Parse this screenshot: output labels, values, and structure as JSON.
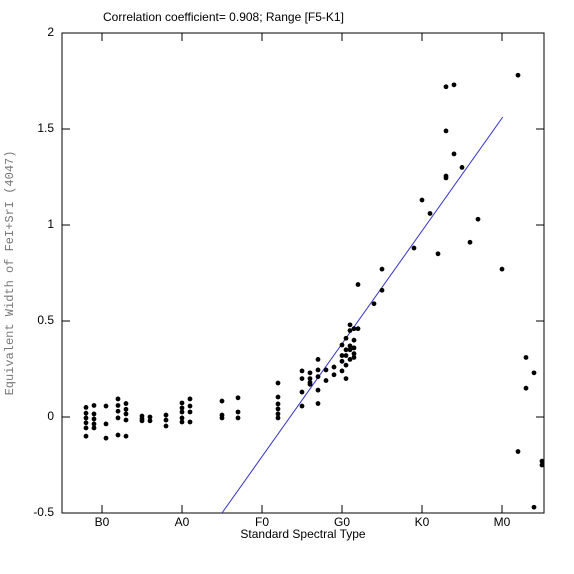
{
  "chart_data": {
    "type": "scatter",
    "title": "Correlation coefficient= 0.908; Range [F5-K1]",
    "x_label": "Standard Spectral Type",
    "y_label": "Equivalent Width of FeI+SrI (4047)",
    "xlim": [
      -5,
      55.25
    ],
    "ylim": [
      -0.5,
      2
    ],
    "xticks": [
      {
        "value": 0,
        "label": "B0"
      },
      {
        "value": 10,
        "label": "A0"
      },
      {
        "value": 20,
        "label": "F0"
      },
      {
        "value": 30,
        "label": "G0"
      },
      {
        "value": 40,
        "label": "K0"
      },
      {
        "value": 50,
        "label": "M0"
      }
    ],
    "yticks": [
      -0.5,
      0,
      0.5,
      1,
      1.5,
      2
    ],
    "series": [
      {
        "color": "#000000",
        "x": [
          -2,
          -2,
          -2,
          -2,
          -2,
          -2,
          -1,
          -1,
          -1,
          -1,
          -1,
          0.5,
          0.5,
          0.5,
          2,
          2,
          2,
          2,
          2,
          3,
          3,
          3,
          3,
          3,
          5,
          5,
          5,
          6,
          6,
          8,
          8,
          8,
          10,
          10,
          10,
          10,
          10,
          11,
          11,
          11,
          11,
          15,
          15,
          15,
          17,
          17,
          17,
          22,
          22,
          22,
          22,
          22,
          22,
          25,
          25,
          25,
          25,
          26,
          26,
          26,
          26,
          27,
          27,
          27,
          27,
          27,
          28,
          28,
          29,
          29,
          30,
          30,
          30,
          30,
          30.5,
          30.5,
          30.5,
          30.5,
          30.5,
          31,
          31,
          31,
          31,
          31,
          31.5,
          31.5,
          31.5,
          31.5,
          31.5,
          32,
          32,
          34,
          35,
          35,
          39,
          40,
          41,
          42,
          43,
          43,
          43,
          43,
          44,
          44,
          45,
          46,
          47,
          50,
          52,
          52,
          53,
          53,
          54,
          54,
          55,
          55
        ],
        "values": [
          0.05,
          0.02,
          -0.005,
          -0.03,
          -0.057,
          -0.1,
          0.06,
          0.016,
          -0.01,
          -0.036,
          -0.057,
          0.057,
          -0.036,
          -0.11,
          0.094,
          0.06,
          0.03,
          -0.005,
          -0.094,
          0.07,
          0.04,
          0.016,
          -0.016,
          -0.1,
          0.005,
          -0.01,
          -0.02,
          0,
          -0.02,
          0.01,
          -0.016,
          -0.047,
          0.073,
          0.047,
          0.026,
          -0.005,
          -0.026,
          0.094,
          0.057,
          0.026,
          -0.026,
          0.083,
          0.01,
          -0.005,
          0.1,
          0.026,
          -0.005,
          0.177,
          0.104,
          0.068,
          0.042,
          0.016,
          -0.005,
          0.24,
          0.2,
          0.13,
          0.057,
          0.23,
          0.2,
          0.18,
          0.17,
          0.3,
          0.245,
          0.21,
          0.14,
          0.07,
          0.245,
          0.19,
          0.22,
          0.26,
          0.375,
          0.32,
          0.29,
          0.24,
          0.41,
          0.35,
          0.32,
          0.27,
          0.2,
          0.48,
          0.45,
          0.37,
          0.35,
          0.3,
          0.46,
          0.4,
          0.36,
          0.33,
          0.31,
          0.69,
          0.46,
          0.59,
          0.77,
          0.66,
          0.88,
          1.13,
          1.06,
          0.85,
          1.72,
          1.49,
          1.255,
          1.245,
          1.73,
          1.37,
          1.3,
          0.91,
          1.03,
          0.77,
          1.78,
          -0.18,
          0.31,
          0.15,
          0.23,
          -0.47,
          -0.23,
          -0.25
        ]
      }
    ],
    "fit_line": {
      "color": "#3333cc",
      "x": [
        15,
        50.1
      ],
      "values": [
        -0.5,
        1.5625
      ]
    }
  }
}
